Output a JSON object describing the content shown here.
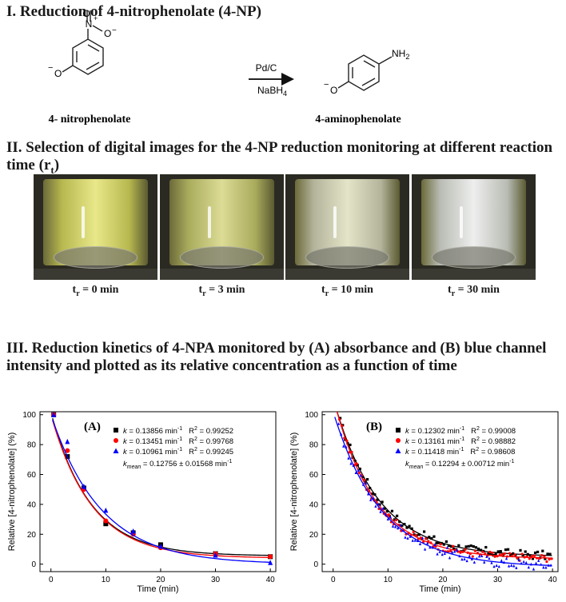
{
  "section1": {
    "title": "I. Reduction of 4-nitrophenolate (4-NP)"
  },
  "reaction": {
    "reactant_name": "4- nitrophenolate",
    "product_name": "4-aminophenolate",
    "reagent_top": "Pd/C",
    "reagent_bottom_main": "NaBH",
    "reagent_bottom_sub": "4",
    "nitro_N": "N",
    "nitro_plus": "+",
    "nitro_O_top": "O",
    "nitro_O_right": "O",
    "minus": "−",
    "oxygen": "O",
    "amine_main": "NH",
    "amine_sub": "2"
  },
  "section2": {
    "title_line1": "II. Selection of digital images for the 4-NP reduction monitoring at different reaction",
    "title_line2_main": "time (r",
    "title_line2_sub": "t",
    "title_line2_end": ")"
  },
  "photos": [
    {
      "t": "t",
      "sub": "r",
      "rest": " = 0 min",
      "liquid": "#b8b850",
      "glow": "#e8e88a"
    },
    {
      "t": "t",
      "sub": "r",
      "rest": " = 3 min",
      "liquid": "#a9ab5c",
      "glow": "#dcdc96"
    },
    {
      "t": "t",
      "sub": "r",
      "rest": " = 10 min",
      "liquid": "#b4b49c",
      "glow": "#e4e4c8"
    },
    {
      "t": "t",
      "sub": "r",
      "rest": " = 30 min",
      "liquid": "#b9bcb4",
      "glow": "#eeeeee"
    }
  ],
  "section3": {
    "title_line1": "III. Reduction kinetics of 4-NPA monitored by (A) absorbance and (B) blue channel",
    "title_line2": "intensity and plotted as its relative concentration as a function of time"
  },
  "colors": {
    "black": "#000000",
    "red": "#ff0000",
    "blue": "#0000ff"
  },
  "chart_data": [
    {
      "type": "scatter",
      "panel_label": "(A)",
      "xlabel": "Time (min)",
      "ylabel": "Relative [4-nitrophenolate] (%)",
      "xlim": [
        -2,
        41
      ],
      "ylim": [
        -5,
        102
      ],
      "xticks": [
        0,
        10,
        20,
        30,
        40
      ],
      "yticks": [
        0,
        20,
        40,
        60,
        80,
        100
      ],
      "legend_position": "top-right",
      "series": [
        {
          "k_text": "k",
          "k_value": " = 0.13856 min",
          "k_sup": "-1",
          "r2_text": "R",
          "r2_sup": "2",
          "r2_value": " = 0.99252",
          "color": "#000000",
          "marker": "square",
          "x": [
            0.5,
            3,
            6,
            10,
            15,
            20,
            30,
            40
          ],
          "y": [
            100,
            72,
            51,
            27,
            21,
            13,
            7,
            5
          ],
          "fit": {
            "A": 96,
            "k": 0.13856,
            "c": 5.5
          }
        },
        {
          "k_text": "k",
          "k_value": " = 0.13451 min",
          "k_sup": "-1",
          "r2_text": "R",
          "r2_sup": "2",
          "r2_value": " = 0.99768",
          "color": "#ff0000",
          "marker": "circle",
          "x": [
            0.5,
            3,
            6,
            10,
            15,
            20,
            30,
            40
          ],
          "y": [
            100,
            76,
            50,
            29,
            20,
            11,
            7,
            5
          ],
          "fit": {
            "A": 96,
            "k": 0.13451,
            "c": 4
          }
        },
        {
          "k_text": "k",
          "k_value": " = 0.10961 min",
          "k_sup": "-1",
          "r2_text": "R",
          "r2_sup": "2",
          "r2_value": " = 0.99245",
          "color": "#0000ff",
          "marker": "triangle",
          "x": [
            0.5,
            3,
            6,
            10,
            15,
            20,
            30,
            40
          ],
          "y": [
            100,
            82,
            52,
            36,
            22,
            12,
            6,
            1
          ],
          "fit": {
            "A": 100,
            "k": 0.10961,
            "c": 0
          }
        }
      ],
      "kmean": {
        "k": "k",
        "sub": "mean",
        "value": " = 0.12756 ± 0.01568 min",
        "sup": "-1"
      }
    },
    {
      "type": "scatter",
      "panel_label": "(B)",
      "xlabel": "Time (min)",
      "ylabel": "Relative [4-nitrophenolate] (%)",
      "xlim": [
        -2,
        41
      ],
      "ylim": [
        -5,
        102
      ],
      "xticks": [
        0,
        10,
        20,
        30,
        40
      ],
      "yticks": [
        0,
        20,
        40,
        60,
        80,
        100
      ],
      "legend_position": "top-right",
      "series": [
        {
          "k_text": "k",
          "k_value": " = 0.12302 min",
          "k_sup": "-1",
          "r2_text": "R",
          "r2_sup": "2",
          "r2_value": " = 0.99008",
          "color": "#000000",
          "marker": "square",
          "fit": {
            "A": 106,
            "k": 0.12302,
            "c": 5
          },
          "noise": 3,
          "offset": 1
        },
        {
          "k_text": "k",
          "k_value": " = 0.13161 min",
          "k_sup": "-1",
          "r2_text": "R",
          "r2_sup": "2",
          "r2_value": " = 0.98882",
          "color": "#ff0000",
          "marker": "circle",
          "fit": {
            "A": 108,
            "k": 0.13161,
            "c": 3.5
          },
          "noise": 2.5,
          "offset": 0.5
        },
        {
          "k_text": "k",
          "k_value": " = 0.11418 min",
          "k_sup": "-1",
          "r2_text": "R",
          "r2_sup": "2",
          "r2_value": " = 0.98608",
          "color": "#0000ff",
          "marker": "triangle",
          "fit": {
            "A": 104,
            "k": 0.11418,
            "c": -2
          },
          "noise": 3.5,
          "offset": 0
        }
      ],
      "kmean": {
        "k": "k",
        "sub": "mean",
        "value": " = 0.12294 ± 0.00712 min",
        "sup": "-1"
      }
    }
  ]
}
